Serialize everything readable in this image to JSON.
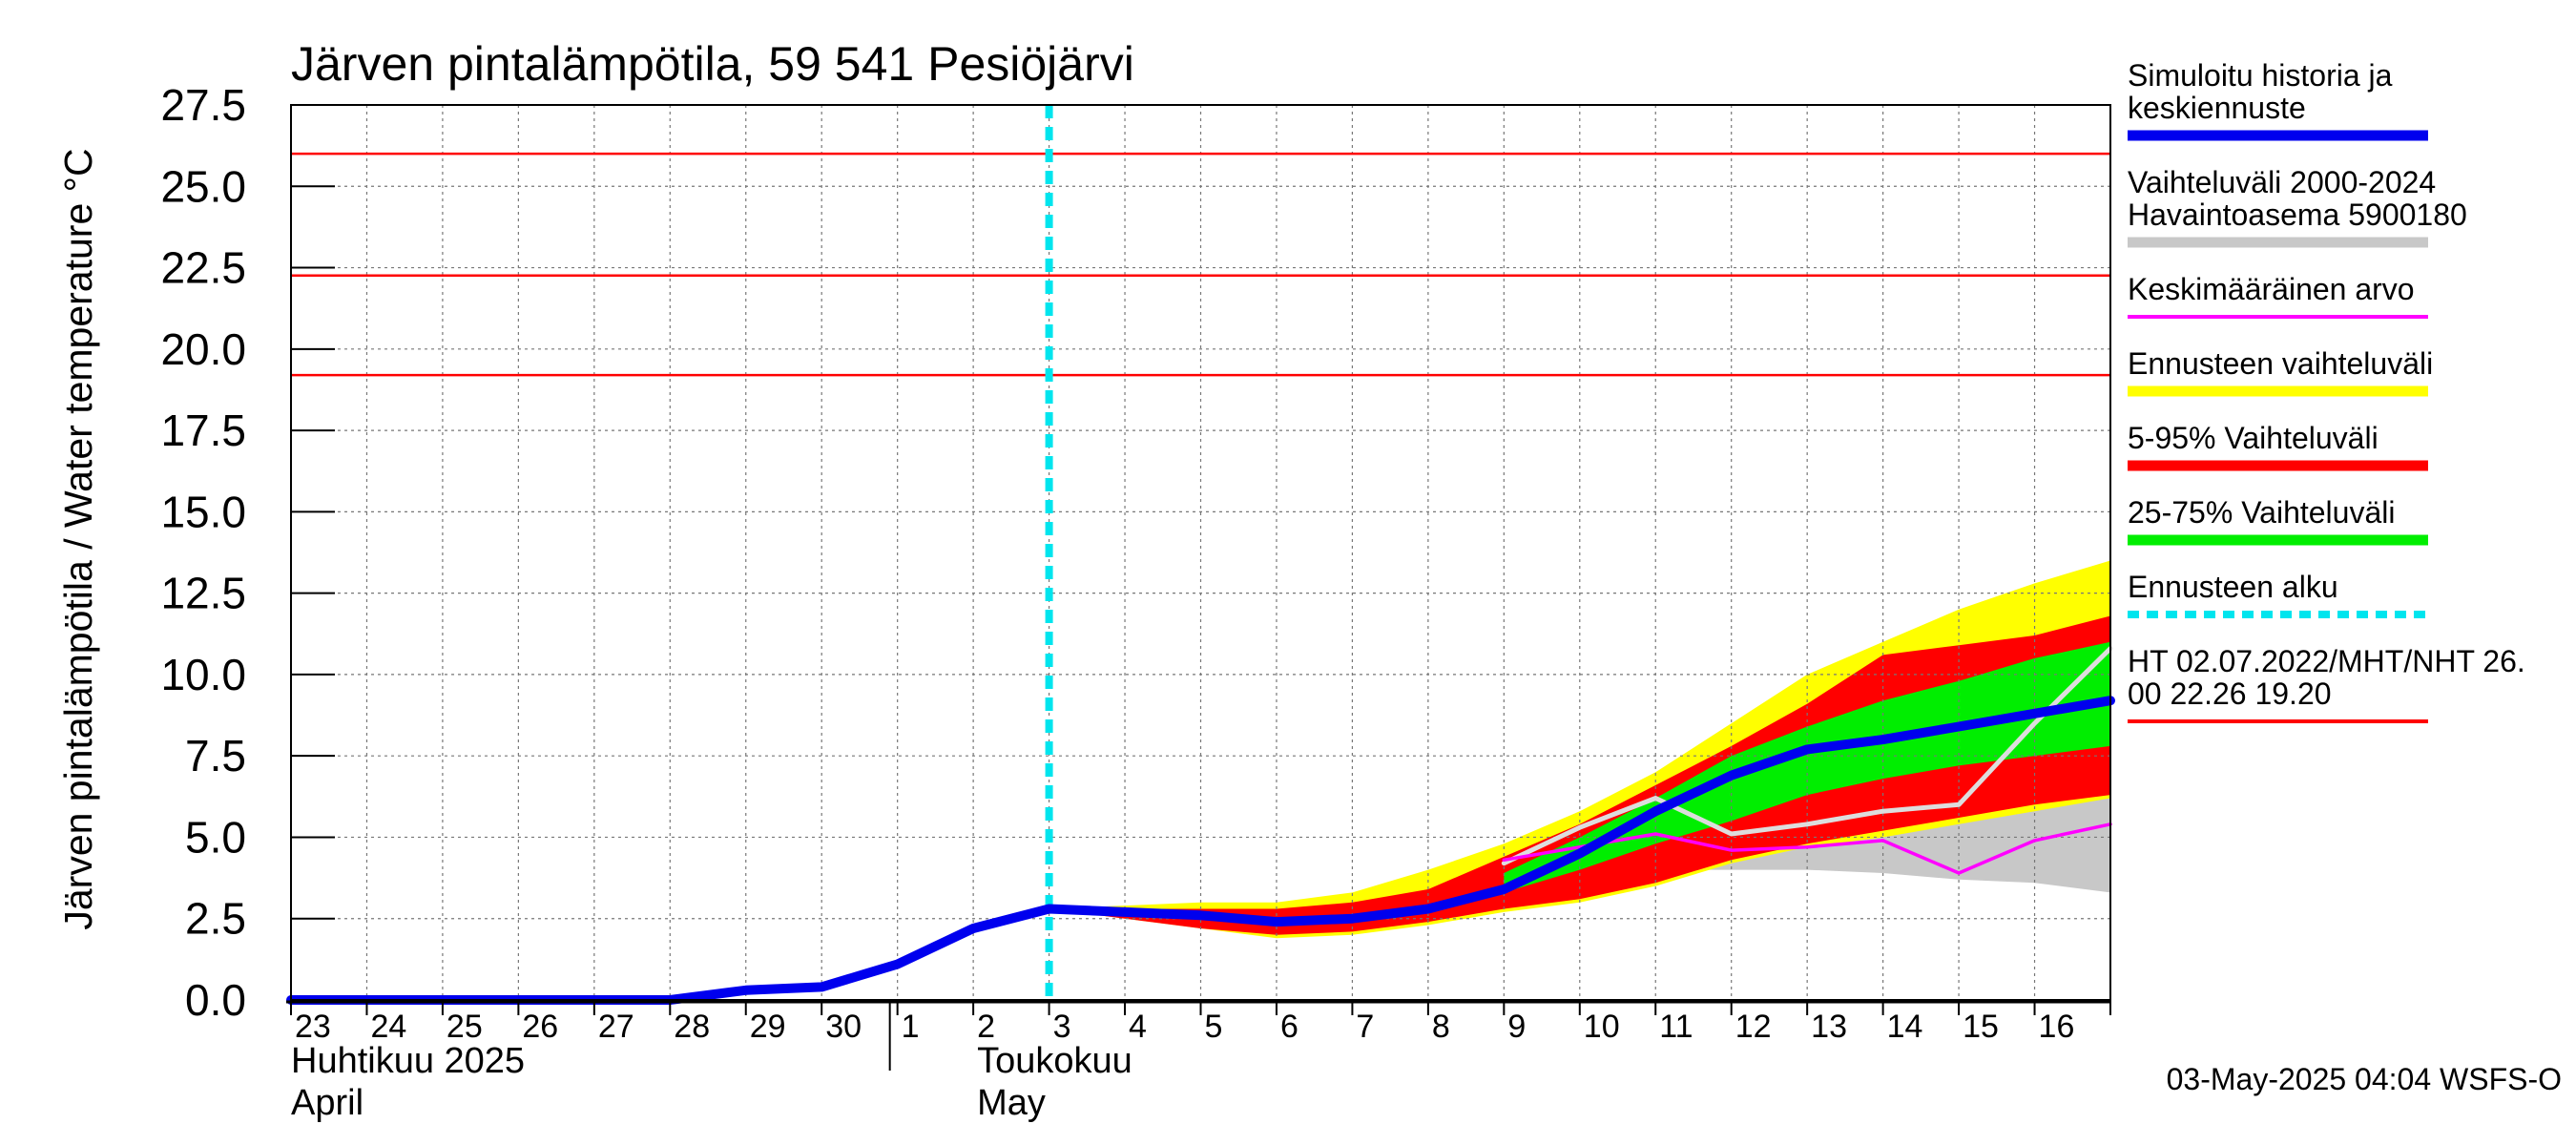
{
  "chart_data": {
    "type": "area",
    "title": "Järven pintalämpötila, 59 541 Pesiöjärvi",
    "ylabel": "Järven pintalämpötila / Water temperature °C",
    "ylim": [
      0,
      27.5
    ],
    "yticks": [
      "0.0",
      "2.5",
      "5.0",
      "7.5",
      "10.0",
      "12.5",
      "15.0",
      "17.5",
      "20.0",
      "22.5",
      "25.0",
      "27.5"
    ],
    "x_tick_labels": [
      "23",
      "24",
      "25",
      "26",
      "27",
      "28",
      "29",
      "30",
      "1",
      "2",
      "3",
      "4",
      "5",
      "6",
      "7",
      "8",
      "9",
      "10",
      "11",
      "12",
      "13",
      "14",
      "15",
      "16"
    ],
    "month_labels": [
      {
        "fi": "Huhtikuu  2025",
        "en": "April"
      },
      {
        "fi": "Toukokuu",
        "en": "May"
      }
    ],
    "x_start": "2025-04-23",
    "x_end": "2025-05-17",
    "forecast_start": "2025-05-03",
    "grid": true,
    "legend_position": "right",
    "reference_lines": [
      {
        "name": "HT 02.07.2022",
        "value": 26.0
      },
      {
        "name": "MHT",
        "value": 22.26
      },
      {
        "name": "NHT",
        "value": 19.2
      }
    ],
    "series": [
      {
        "name": "Simuloitu historia ja keskiennuste",
        "color": "#0000ee",
        "x": [
          "2025-04-23",
          "2025-04-24",
          "2025-04-25",
          "2025-04-26",
          "2025-04-27",
          "2025-04-28",
          "2025-04-29",
          "2025-04-30",
          "2025-05-01",
          "2025-05-02",
          "2025-05-03",
          "2025-05-04",
          "2025-05-05",
          "2025-05-06",
          "2025-05-07",
          "2025-05-08",
          "2025-05-09",
          "2025-05-10",
          "2025-05-11",
          "2025-05-12",
          "2025-05-13",
          "2025-05-14",
          "2025-05-15",
          "2025-05-16",
          "2025-05-17"
        ],
        "y": [
          0.0,
          0.0,
          0.0,
          0.0,
          0.0,
          0.0,
          0.3,
          0.4,
          1.1,
          2.2,
          2.8,
          2.7,
          2.6,
          2.4,
          2.5,
          2.8,
          3.4,
          4.5,
          5.8,
          6.9,
          7.7,
          8.0,
          8.4,
          8.8,
          9.2
        ]
      },
      {
        "name": "Vaihteluväli 2000-2024 Havaintoasema 5900180",
        "color": "#c8c8c8",
        "x": [
          "2025-05-09",
          "2025-05-10",
          "2025-05-11",
          "2025-05-12",
          "2025-05-13",
          "2025-05-14",
          "2025-05-15",
          "2025-05-16",
          "2025-05-17"
        ],
        "low": [
          3.8,
          3.9,
          4.0,
          4.0,
          4.0,
          3.9,
          3.7,
          3.6,
          3.3
        ],
        "high": [
          4.6,
          5.0,
          5.2,
          5.4,
          5.6,
          5.7,
          5.8,
          6.0,
          6.3
        ],
        "mid": [
          4.2,
          5.3,
          6.2,
          5.1,
          5.4,
          5.8,
          6.0,
          8.5,
          10.8
        ]
      },
      {
        "name": "Keskimääräinen arvo",
        "color": "#ff00ff",
        "x": [
          "2025-05-09",
          "2025-05-10",
          "2025-05-11",
          "2025-05-12",
          "2025-05-13",
          "2025-05-14",
          "2025-05-15",
          "2025-05-16",
          "2025-05-17"
        ],
        "y": [
          4.3,
          4.7,
          5.1,
          4.6,
          4.7,
          4.9,
          3.9,
          4.9,
          5.4
        ]
      },
      {
        "name": "Ennusteen vaihteluväli",
        "color": "#ffff00",
        "x": [
          "2025-05-03",
          "2025-05-04",
          "2025-05-05",
          "2025-05-06",
          "2025-05-07",
          "2025-05-08",
          "2025-05-09",
          "2025-05-10",
          "2025-05-11",
          "2025-05-12",
          "2025-05-13",
          "2025-05-14",
          "2025-05-15",
          "2025-05-16",
          "2025-05-17"
        ],
        "low": [
          2.8,
          2.5,
          2.2,
          1.9,
          2.0,
          2.3,
          2.7,
          3.0,
          3.5,
          4.2,
          4.7,
          5.0,
          5.4,
          5.8,
          6.2
        ],
        "high": [
          2.8,
          2.9,
          3.0,
          3.0,
          3.3,
          4.0,
          4.8,
          5.8,
          7.0,
          8.5,
          10.0,
          11.0,
          12.0,
          12.8,
          13.5
        ]
      },
      {
        "name": "5-95% Vaihteluväli",
        "color": "#ff0000",
        "x": [
          "2025-05-03",
          "2025-05-04",
          "2025-05-05",
          "2025-05-06",
          "2025-05-07",
          "2025-05-08",
          "2025-05-09",
          "2025-05-10",
          "2025-05-11",
          "2025-05-12",
          "2025-05-13",
          "2025-05-14",
          "2025-05-15",
          "2025-05-16",
          "2025-05-17"
        ],
        "low": [
          2.8,
          2.5,
          2.2,
          2.0,
          2.1,
          2.4,
          2.8,
          3.1,
          3.6,
          4.3,
          4.8,
          5.2,
          5.6,
          6.0,
          6.3
        ],
        "high": [
          2.8,
          2.8,
          2.8,
          2.8,
          3.0,
          3.4,
          4.4,
          5.4,
          6.6,
          7.8,
          9.1,
          10.6,
          10.9,
          11.2,
          11.8
        ]
      },
      {
        "name": "25-75% Vaihteluväli",
        "color": "#00ee00",
        "x": [
          "2025-05-09",
          "2025-05-10",
          "2025-05-11",
          "2025-05-12",
          "2025-05-13",
          "2025-05-14",
          "2025-05-15",
          "2025-05-16",
          "2025-05-17"
        ],
        "low": [
          3.3,
          4.0,
          4.8,
          5.5,
          6.3,
          6.8,
          7.2,
          7.5,
          7.8
        ],
        "high": [
          3.9,
          5.0,
          6.2,
          7.5,
          8.4,
          9.2,
          9.8,
          10.5,
          11.0
        ]
      }
    ],
    "legend": [
      {
        "label": "Simuloitu historia ja\nkeskiennuste",
        "color": "#0000ee",
        "style": "thick"
      },
      {
        "label": "Vaihteluväli 2000-2024\n Havaintoasema 5900180",
        "color": "#c8c8c8",
        "style": "thick"
      },
      {
        "label": "Keskimääräinen arvo",
        "color": "#ff00ff",
        "style": "thin"
      },
      {
        "label": "Ennusteen vaihteluväli",
        "color": "#ffff00",
        "style": "thick"
      },
      {
        "label": "5-95% Vaihteluväli",
        "color": "#ff0000",
        "style": "thick"
      },
      {
        "label": "25-75% Vaihteluväli",
        "color": "#00ee00",
        "style": "thick"
      },
      {
        "label": "Ennusteen alku",
        "color": "#00e5ee",
        "style": "dashed"
      },
      {
        "label": "HT 02.07.2022/MHT/NHT 26.\n00 22.26 19.20",
        "color": "#ff0000",
        "style": "thin"
      }
    ],
    "footer": "03-May-2025 04:04 WSFS-O"
  }
}
